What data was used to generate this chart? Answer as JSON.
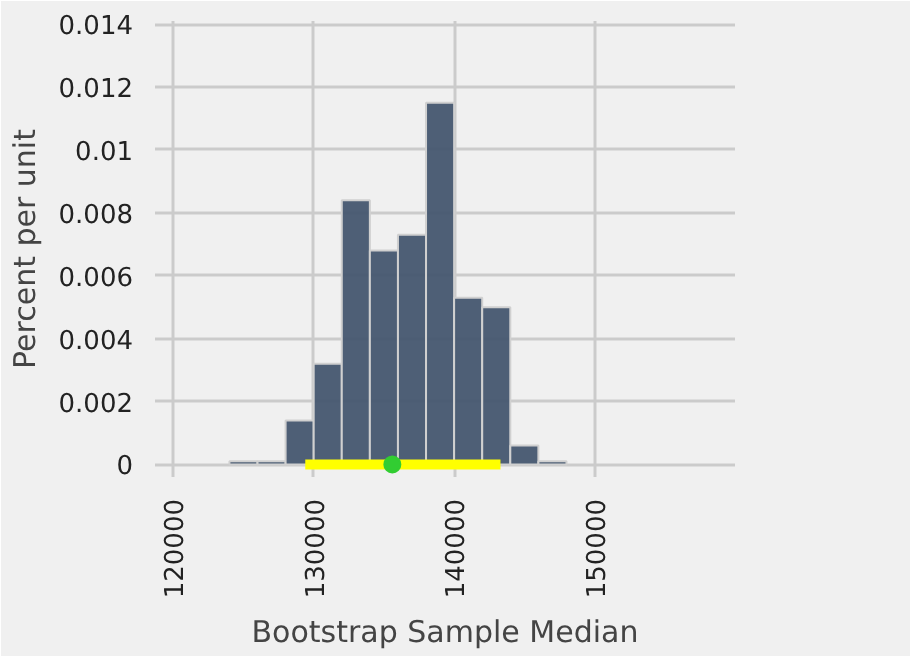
{
  "chart_data": {
    "type": "histogram",
    "xlabel": "Bootstrap Sample Median",
    "ylabel": "Percent per unit",
    "bins": [
      124000,
      126000,
      128000,
      130000,
      132000,
      134000,
      136000,
      138000,
      140000,
      142000,
      144000,
      146000,
      148000
    ],
    "values": [
      0.0001,
      0.0001,
      0.0014,
      0.0032,
      0.0084,
      0.0068,
      0.0073,
      0.0115,
      0.0053,
      0.005,
      0.0006,
      0.0001
    ],
    "color": "#44566f",
    "series": [
      {
        "type": "line",
        "color": "#ffff00",
        "x": [
          129400,
          143300
        ],
        "values": [
          0,
          0
        ]
      },
      {
        "type": "scatter",
        "color": "#32cd32",
        "x": [
          135600
        ],
        "values": [
          0
        ],
        "marker": "circle"
      }
    ],
    "xlim": [
      118700,
      160000
    ],
    "ylim": [
      -0.0004,
      0.0141
    ],
    "xticks": [
      120000,
      130000,
      140000,
      150000
    ],
    "yticks": [
      0,
      0.002,
      0.004,
      0.006,
      0.008,
      0.01,
      0.012,
      0.014
    ],
    "grid": true
  }
}
